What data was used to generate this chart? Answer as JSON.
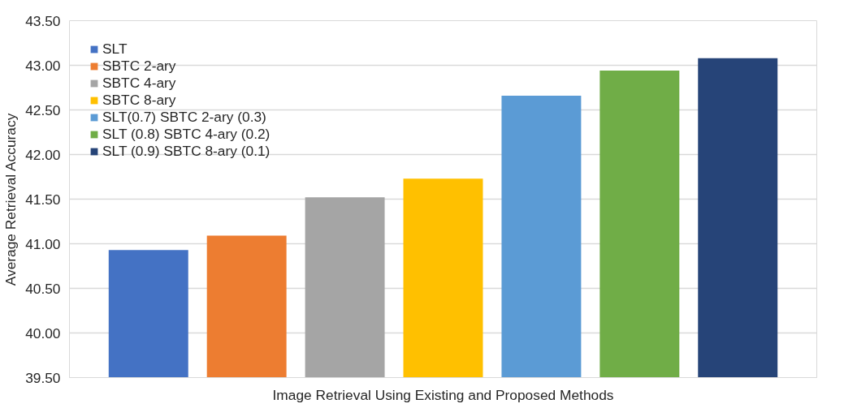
{
  "chart_data": {
    "type": "bar",
    "xlabel": "Image Retrieval Using Existing and Proposed Methods",
    "ylabel": "Average Retrieval Accuracy",
    "categories": [
      null
    ],
    "series": [
      {
        "name": "SLT",
        "color": "#4472c4",
        "values": [
          40.93
        ]
      },
      {
        "name": "SBTC 2-ary",
        "color": "#ed7d31",
        "values": [
          41.09
        ]
      },
      {
        "name": "SBTC 4-ary",
        "color": "#a5a5a5",
        "values": [
          41.52
        ]
      },
      {
        "name": "SBTC 8-ary",
        "color": "#ffc000",
        "values": [
          41.73
        ]
      },
      {
        "name": "SLT(0.7) SBTC 2-ary (0.3)",
        "color": "#5b9bd5",
        "values": [
          42.66
        ]
      },
      {
        "name": "SLT (0.8) SBTC 4-ary (0.2)",
        "color": "#70ad47",
        "values": [
          42.94
        ]
      },
      {
        "name": "SLT (0.9) SBTC 8-ary (0.1)",
        "color": "#264478",
        "values": [
          43.08
        ]
      }
    ],
    "ylim": [
      39.5,
      43.5
    ],
    "yticks": [
      {
        "value": 39.5,
        "label": "39.50"
      },
      {
        "value": 40,
        "label": "40.00"
      },
      {
        "value": 40.5,
        "label": "40.50"
      },
      {
        "value": 41,
        "label": "41.00"
      },
      {
        "value": 41.5,
        "label": "41.50"
      },
      {
        "value": 42,
        "label": "42.00"
      },
      {
        "value": 42.5,
        "label": "42.50"
      },
      {
        "value": 43,
        "label": "43.00"
      },
      {
        "value": 43.5,
        "label": "43.50"
      }
    ],
    "grid": "y",
    "legend": "top left"
  }
}
